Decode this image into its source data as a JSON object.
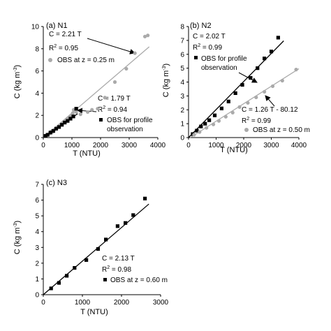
{
  "chart_data": [
    {
      "type": "scatter",
      "panel_label": "(a) N1",
      "xlabel": "T (NTU)",
      "ylabel_main": "C (kg m",
      "ylabel_sup": "-3",
      "ylabel_tail": ")",
      "xlim": [
        0,
        4000
      ],
      "ylim": [
        0,
        10
      ],
      "xticks": [
        0,
        1000,
        2000,
        3000,
        4000
      ],
      "yticks": [
        0,
        2,
        4,
        6,
        8,
        10
      ],
      "series": [
        {
          "key": "obs_025",
          "marker": "circle",
          "color": "#aaaaaa",
          "x": [
            80,
            130,
            180,
            230,
            280,
            330,
            380,
            430,
            480,
            530,
            580,
            630,
            680,
            730,
            780,
            830,
            880,
            930,
            980,
            1030,
            1060,
            1150,
            1300,
            1550,
            1700,
            1900,
            2150,
            2500,
            2900,
            3200,
            3550,
            3650
          ],
          "y": [
            0.1,
            0.25,
            0.3,
            0.4,
            0.55,
            0.5,
            0.7,
            0.8,
            0.9,
            0.95,
            1.1,
            1.2,
            1.3,
            1.4,
            1.55,
            1.65,
            1.75,
            1.9,
            2.0,
            2.2,
            2.5,
            2.3,
            2.1,
            2.3,
            2.5,
            2.6,
            3.6,
            5.0,
            6.2,
            7.6,
            9.1,
            9.2
          ]
        },
        {
          "key": "obs_profile",
          "marker": "square",
          "color": "#000000",
          "x": [
            80,
            150,
            250,
            350,
            450,
            550,
            650,
            750,
            850,
            950,
            1050,
            1150
          ],
          "y": [
            0.15,
            0.25,
            0.45,
            0.6,
            0.8,
            0.95,
            1.15,
            1.35,
            1.5,
            1.7,
            1.9,
            2.6
          ]
        }
      ],
      "fits": [
        {
          "key": "fit_a1",
          "slope": 2.21,
          "intercept": 0,
          "x_range": [
            0,
            3700
          ],
          "color": "#aaaaaa"
        },
        {
          "key": "fit_a2",
          "slope": 1.79,
          "intercept": 0,
          "x_range": [
            0,
            1200
          ],
          "color": "#000000"
        }
      ],
      "annotations": [
        {
          "key": "ann_a1",
          "equation": "C = 2.21 T",
          "r2": "0.95",
          "legend_text": "OBS at z = 0.25 m",
          "marker": "circle",
          "arrow_to": [
            3000,
            6.6
          ]
        },
        {
          "key": "ann_a2",
          "equation": "C = 1.79 T",
          "r2": "0.94",
          "legend_text": [
            "OBS for profile",
            "observation"
          ],
          "marker": "square",
          "arrow_to": [
            1200,
            2.1
          ]
        }
      ]
    },
    {
      "type": "scatter",
      "panel_label": "(b) N2",
      "xlabel": "T (NTU)",
      "ylabel_main": "C (kg m",
      "ylabel_sup": "-3",
      "ylabel_tail": ")",
      "xlim": [
        0,
        4000
      ],
      "ylim": [
        0,
        8
      ],
      "xticks": [
        0,
        1000,
        2000,
        3000,
        4000
      ],
      "yticks": [
        0,
        1,
        2,
        3,
        4,
        5,
        6,
        7,
        8
      ],
      "series": [
        {
          "key": "obs_profile",
          "marker": "square",
          "color": "#000000",
          "x": [
            150,
            300,
            450,
            600,
            750,
            950,
            1200,
            1450,
            1700,
            1950,
            2250,
            2500,
            2750,
            3000,
            3250
          ],
          "y": [
            0.25,
            0.5,
            0.8,
            1.0,
            1.25,
            1.6,
            2.1,
            2.6,
            3.2,
            3.8,
            4.3,
            5.0,
            5.7,
            6.2,
            7.2
          ]
        },
        {
          "key": "obs_050",
          "marker": "circle",
          "color": "#aaaaaa",
          "x": [
            200,
            400,
            650,
            900,
            1100,
            1350,
            1600,
            1850,
            2150,
            2450,
            2750,
            3050,
            3400,
            3900
          ],
          "y": [
            0.2,
            0.4,
            0.7,
            0.95,
            1.2,
            1.5,
            1.8,
            2.2,
            2.5,
            2.9,
            3.3,
            3.7,
            4.1,
            4.9
          ]
        }
      ],
      "fits": [
        {
          "key": "fit_b1",
          "slope": 2.02,
          "intercept": 0,
          "x_range": [
            0,
            3450
          ],
          "color": "#000000"
        },
        {
          "key": "fit_b2",
          "slope": 1.26,
          "intercept": -80.12,
          "x_range": [
            0,
            4000
          ],
          "color": "#aaaaaa"
        }
      ],
      "annotations": [
        {
          "key": "ann_b1",
          "equation": "C = 2.02 T",
          "r2": "0.99",
          "legend_text": [
            "OBS for profile",
            "observation"
          ],
          "marker": "square",
          "arrow_to": [
            2600,
            5.2
          ]
        },
        {
          "key": "ann_b2",
          "equation": "C = 1.26 T - 80.12",
          "r2": "0.99",
          "legend_text": "OBS at z = 0.50 m",
          "marker": "circle",
          "arrow_to": [
            2900,
            3.4
          ]
        }
      ]
    },
    {
      "type": "scatter",
      "panel_label": "(c) N3",
      "xlabel": "T (NTU)",
      "ylabel_main": "C (kg m",
      "ylabel_sup": "-3",
      "ylabel_tail": ")",
      "xlim": [
        0,
        3000
      ],
      "ylim": [
        0,
        7
      ],
      "xticks": [
        0,
        1000,
        2000,
        3000
      ],
      "yticks": [
        0,
        1,
        2,
        3,
        4,
        5,
        6,
        7
      ],
      "series": [
        {
          "key": "obs_060",
          "marker": "square",
          "color": "#000000",
          "x": [
            200,
            400,
            600,
            800,
            1100,
            1400,
            1600,
            1900,
            2100,
            2300,
            2600
          ],
          "y": [
            0.4,
            0.75,
            1.2,
            1.7,
            2.2,
            2.9,
            3.5,
            4.35,
            4.55,
            5.05,
            6.1
          ]
        }
      ],
      "fits": [
        {
          "key": "fit_c1",
          "slope": 2.13,
          "intercept": 0,
          "x_range": [
            0,
            2700
          ],
          "color": "#000000"
        }
      ],
      "annotations": [
        {
          "key": "ann_c1",
          "equation": "C = 2.13 T",
          "r2": "0.98",
          "legend_text": "OBS at z = 0.60 m",
          "marker": "square",
          "arrow_to": null
        }
      ]
    }
  ]
}
